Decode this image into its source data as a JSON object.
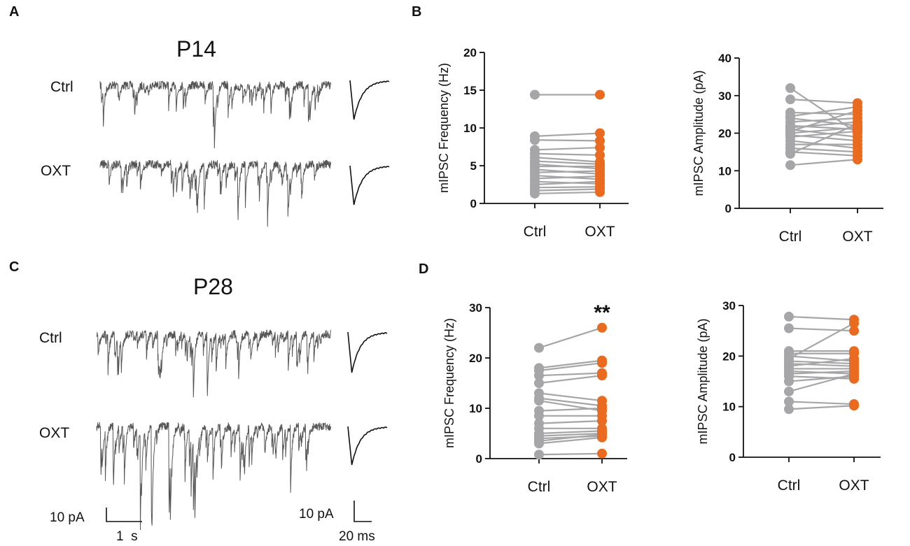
{
  "panels": {
    "A": {
      "letter": "A",
      "age": "P14",
      "conditions": [
        "Ctrl",
        "OXT"
      ]
    },
    "B": {
      "letter": "B"
    },
    "C": {
      "letter": "C",
      "age": "P28",
      "conditions": [
        "Ctrl",
        "OXT"
      ]
    },
    "D": {
      "letter": "D"
    }
  },
  "scalebars": {
    "trace_amp": "10 pA",
    "trace_time": "1  s",
    "avg_amp": "10 pA",
    "avg_time": "20 ms"
  },
  "colors": {
    "ctrl": "#a6a6a8",
    "oxt": "#ea6a1f",
    "line": "#a6a6a8",
    "axis": "#111111",
    "trace": "#555555"
  },
  "chart_data": [
    {
      "id": "B-left",
      "type": "scatter",
      "title": "",
      "ylabel": "mIPSC Frequency (Hz)",
      "categories": [
        "Ctrl",
        "OXT"
      ],
      "ylim": [
        0,
        20
      ],
      "yticks": [
        0,
        5,
        10,
        15,
        20
      ],
      "annotation": "",
      "series": [
        {
          "name": "Ctrl",
          "values": [
            14.4,
            8.9,
            8.4,
            7.1,
            6.6,
            6.1,
            5.6,
            5.2,
            4.9,
            4.5,
            4.1,
            3.7,
            3.3,
            2.9,
            2.5,
            2.1,
            1.7,
            1.3
          ]
        },
        {
          "name": "OXT",
          "values": [
            14.4,
            9.3,
            8.3,
            7.4,
            6.4,
            5.5,
            5.2,
            4.6,
            4.9,
            3.9,
            4.3,
            3.2,
            3.6,
            2.6,
            2.9,
            2.2,
            1.9,
            1.5
          ]
        }
      ]
    },
    {
      "id": "B-right",
      "type": "scatter",
      "title": "",
      "ylabel": "mIPSC Amplitude  (pA)",
      "categories": [
        "Ctrl",
        "OXT"
      ],
      "ylim": [
        0,
        40
      ],
      "yticks": [
        0,
        10,
        20,
        30,
        40
      ],
      "annotation": "",
      "series": [
        {
          "name": "Ctrl",
          "values": [
            32,
            29,
            25.5,
            24.5,
            24,
            23,
            22,
            21.5,
            21,
            20.5,
            20,
            19.5,
            19,
            18,
            17,
            16,
            15,
            14.5,
            11.5
          ]
        },
        {
          "name": "OXT",
          "values": [
            20,
            28,
            25,
            27,
            22,
            24,
            21,
            23,
            19,
            26,
            21.5,
            18,
            20.5,
            16,
            17,
            15,
            14,
            22.5,
            13
          ]
        }
      ]
    },
    {
      "id": "D-left",
      "type": "scatter",
      "title": "",
      "ylabel": "mIPSC Frequency (Hz)",
      "categories": [
        "Ctrl",
        "OXT"
      ],
      "ylim": [
        0,
        30
      ],
      "yticks": [
        0,
        10,
        20,
        30
      ],
      "annotation": "**",
      "series": [
        {
          "name": "Ctrl",
          "values": [
            22,
            18,
            17.5,
            16.5,
            15,
            13,
            12,
            11.5,
            9.5,
            8.5,
            7,
            6,
            5,
            4.5,
            4,
            3.5,
            3,
            0.8
          ]
        },
        {
          "name": "OXT",
          "values": [
            26,
            19.5,
            19,
            17,
            16.5,
            11.5,
            10.5,
            9.5,
            10,
            8.5,
            7.5,
            6,
            5.5,
            5,
            4.5,
            4.8,
            4.2,
            1
          ]
        }
      ]
    },
    {
      "id": "D-right",
      "type": "scatter",
      "title": "",
      "ylabel": "mIPSC Amplitude  (pA)",
      "categories": [
        "Ctrl",
        "OXT"
      ],
      "ylim": [
        0,
        30
      ],
      "yticks": [
        0,
        10,
        20,
        30
      ],
      "annotation": "",
      "series": [
        {
          "name": "Ctrl",
          "values": [
            27.8,
            25.5,
            21,
            20.5,
            20,
            19.5,
            19,
            18.5,
            18,
            17.5,
            17,
            16.5,
            16,
            15,
            13,
            11,
            9.5
          ]
        },
        {
          "name": "OXT",
          "values": [
            27.2,
            25,
            21,
            20.5,
            19,
            26.5,
            18.5,
            18,
            19.5,
            17.5,
            16.5,
            17,
            15.5,
            16,
            16.5,
            10.5,
            10.2
          ]
        }
      ]
    }
  ]
}
